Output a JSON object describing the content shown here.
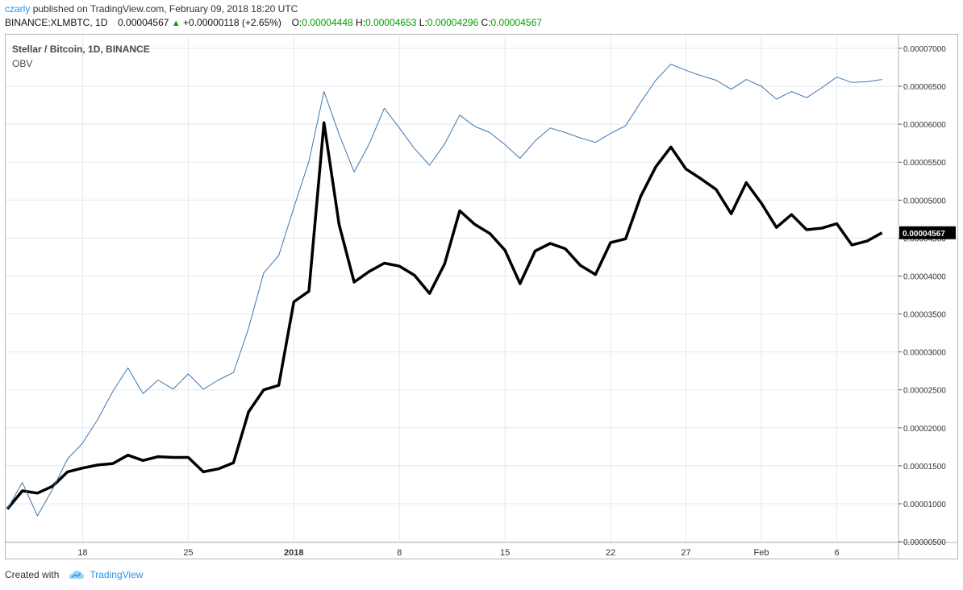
{
  "header": {
    "author": "czarly",
    "published": "published on TradingView.com, February 09, 2018 18:20 UTC"
  },
  "quote": {
    "symbol": "BINANCE:XLMBTC, 1D",
    "last": "0.00004567",
    "arrow": "▲",
    "change": "+0.00000118 (+2.65%)",
    "o_label": "O:",
    "o": "0.00004448",
    "h_label": "H:",
    "h": "0.00004653",
    "l_label": "L:",
    "l": "0.00004296",
    "c_label": "C:",
    "c": "0.00004567"
  },
  "legend": {
    "title": "Stellar / Bitcoin, 1D, BINANCE",
    "indicator": "OBV"
  },
  "price_label": "0.00004567",
  "footer": {
    "created_with": "Created with",
    "brand": "TradingView"
  },
  "colors": {
    "price_line": "#000000",
    "obv_line": "#3d75b0",
    "grid": "#e3e8ee",
    "price_badge_bg": "#000000"
  },
  "chart_data": {
    "type": "line",
    "x_ticks": [
      {
        "label": "18",
        "index": 5
      },
      {
        "label": "25",
        "index": 12
      },
      {
        "label": "2018",
        "index": 19
      },
      {
        "label": "8",
        "index": 26
      },
      {
        "label": "15",
        "index": 33
      },
      {
        "label": "22",
        "index": 40
      },
      {
        "label": "27",
        "index": 45
      },
      {
        "label": "Feb",
        "index": 50
      },
      {
        "label": "6",
        "index": 55
      }
    ],
    "y_ticks": [
      "0.00000500",
      "0.00001000",
      "0.00001500",
      "0.00002000",
      "0.00002500",
      "0.00003000",
      "0.00003500",
      "0.00004000",
      "0.00004500",
      "0.00005000",
      "0.00005500",
      "0.00006000",
      "0.00006500",
      "0.00007000"
    ],
    "y_tick_values": [
      5e-06,
      1e-05,
      1.5e-05,
      2e-05,
      2.5e-05,
      3e-05,
      3.5e-05,
      4e-05,
      4.5e-05,
      5e-05,
      5.5e-05,
      6e-05,
      6.5e-05,
      7e-05
    ],
    "ylim": [
      4.9e-06,
      7.18e-05
    ],
    "grid": true,
    "series": [
      {
        "key": "price",
        "values": [
          9.3e-06,
          1.17e-05,
          1.14e-05,
          1.23e-05,
          1.42e-05,
          1.47e-05,
          1.51e-05,
          1.53e-05,
          1.64e-05,
          1.57e-05,
          1.62e-05,
          1.61e-05,
          1.61e-05,
          1.42e-05,
          1.46e-05,
          1.54e-05,
          2.21e-05,
          2.5e-05,
          2.56e-05,
          3.66e-05,
          3.8e-05,
          6.02e-05,
          4.68e-05,
          3.92e-05,
          4.06e-05,
          4.17e-05,
          4.13e-05,
          4.01e-05,
          3.77e-05,
          4.16e-05,
          4.86e-05,
          4.68e-05,
          4.56e-05,
          4.34e-05,
          3.9e-05,
          4.33e-05,
          4.43e-05,
          4.36e-05,
          4.14e-05,
          4.02e-05,
          4.44e-05,
          4.49e-05,
          5.05e-05,
          5.44e-05,
          5.7e-05,
          5.41e-05,
          5.28e-05,
          5.14e-05,
          4.82e-05,
          5.23e-05,
          4.96e-05,
          4.64e-05,
          4.81e-05,
          4.61e-05,
          4.63e-05,
          4.69e-05,
          4.41e-05,
          4.46e-05,
          4.57e-05
        ]
      },
      {
        "key": "obv",
        "values": [
          9.3e-06,
          1.28e-05,
          8.4e-06,
          1.19e-05,
          1.59e-05,
          1.8e-05,
          2.11e-05,
          2.48e-05,
          2.79e-05,
          2.45e-05,
          2.63e-05,
          2.51e-05,
          2.71e-05,
          2.51e-05,
          2.63e-05,
          2.73e-05,
          3.31e-05,
          4.04e-05,
          4.27e-05,
          4.9e-05,
          5.51e-05,
          6.43e-05,
          5.87e-05,
          5.37e-05,
          5.74e-05,
          6.21e-05,
          5.95e-05,
          5.68e-05,
          5.46e-05,
          5.74e-05,
          6.12e-05,
          5.97e-05,
          5.89e-05,
          5.73e-05,
          5.55e-05,
          5.78e-05,
          5.95e-05,
          5.89e-05,
          5.82e-05,
          5.76e-05,
          5.88e-05,
          5.98e-05,
          6.29e-05,
          6.58e-05,
          6.79e-05,
          6.71e-05,
          6.64e-05,
          6.58e-05,
          6.46e-05,
          6.59e-05,
          6.5e-05,
          6.33e-05,
          6.43e-05,
          6.35e-05,
          6.48e-05,
          6.62e-05,
          6.55e-05,
          6.56e-05,
          6.59e-05
        ]
      }
    ]
  }
}
